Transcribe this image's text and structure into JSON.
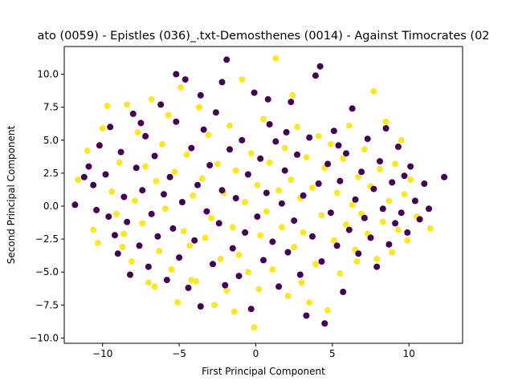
{
  "chart_data": {
    "type": "scatter",
    "title": "ato (0059) - Epistles (036)_.txt-Demosthenes (0014) - Against Timocrates (02",
    "xlabel": "First Principal Component",
    "ylabel": "Second Principal Component",
    "xlim": [
      -12.5,
      13.5
    ],
    "ylim": [
      -10.4,
      12.1
    ],
    "xticks": [
      -10,
      -5,
      0,
      5,
      10
    ],
    "yticks": [
      -10.0,
      -7.5,
      -5.0,
      -2.5,
      0.0,
      2.5,
      5.0,
      7.5,
      10.0
    ],
    "xtick_labels": [
      "−10",
      "−5",
      "0",
      "5",
      "10"
    ],
    "ytick_labels": [
      "−10.0",
      "−7.5",
      "−5.0",
      "−2.5",
      "0.0",
      "2.5",
      "5.0",
      "7.5",
      "10.0"
    ],
    "grid": false,
    "colors": {
      "class_0": "#440154",
      "class_1": "#fde725"
    },
    "series": [
      {
        "color": "#440154",
        "points": [
          [
            -11.8,
            0.1
          ],
          [
            -11.2,
            2.2
          ],
          [
            -10.9,
            3.0
          ],
          [
            -10.6,
            1.6
          ],
          [
            -10.4,
            -0.3
          ],
          [
            -10.2,
            4.6
          ],
          [
            -9.8,
            2.4
          ],
          [
            -9.6,
            -0.8
          ],
          [
            -9.5,
            6.0
          ],
          [
            -9.2,
            -2.2
          ],
          [
            -9.0,
            -3.6
          ],
          [
            -8.8,
            4.1
          ],
          [
            -8.6,
            0.7
          ],
          [
            -8.4,
            -1.2
          ],
          [
            -8.2,
            -5.2
          ],
          [
            -8.0,
            7.0
          ],
          [
            -7.8,
            2.9
          ],
          [
            -7.6,
            -3.0
          ],
          [
            -7.4,
            1.2
          ],
          [
            -7.2,
            5.3
          ],
          [
            -7.0,
            -4.6
          ],
          [
            -6.8,
            -0.6
          ],
          [
            -6.6,
            3.8
          ],
          [
            -6.4,
            -2.3
          ],
          [
            -6.2,
            7.7
          ],
          [
            -6.0,
            0.9
          ],
          [
            -5.8,
            -5.6
          ],
          [
            -5.6,
            2.2
          ],
          [
            -5.4,
            -1.7
          ],
          [
            -5.2,
            6.4
          ],
          [
            -5.0,
            -3.9
          ],
          [
            -4.8,
            0.3
          ],
          [
            -4.6,
            9.6
          ],
          [
            -4.4,
            -6.2
          ],
          [
            -4.2,
            4.4
          ],
          [
            -4.0,
            -2.6
          ],
          [
            -3.8,
            1.6
          ],
          [
            -3.6,
            -7.6
          ],
          [
            -3.4,
            5.8
          ],
          [
            -3.2,
            -0.4
          ],
          [
            -3.0,
            3.1
          ],
          [
            -2.8,
            -4.4
          ],
          [
            -2.6,
            7.1
          ],
          [
            -2.4,
            -1.3
          ],
          [
            -2.2,
            1.2
          ],
          [
            -2.0,
            -6.0
          ],
          [
            -1.9,
            11.1
          ],
          [
            -1.7,
            4.3
          ],
          [
            -1.5,
            -3.2
          ],
          [
            -1.3,
            0.6
          ],
          [
            -1.1,
            -5.3
          ],
          [
            -0.9,
            5.0
          ],
          [
            -0.7,
            -2.0
          ],
          [
            -0.5,
            2.4
          ],
          [
            -0.3,
            -7.8
          ],
          [
            -0.1,
            8.6
          ],
          [
            0.1,
            -0.8
          ],
          [
            0.3,
            3.6
          ],
          [
            0.5,
            -4.1
          ],
          [
            0.7,
            1.0
          ],
          [
            0.9,
            6.2
          ],
          [
            1.1,
            -2.7
          ],
          [
            1.3,
            4.9
          ],
          [
            1.5,
            -6.1
          ],
          [
            1.7,
            0.2
          ],
          [
            1.9,
            2.7
          ],
          [
            2.1,
            -3.5
          ],
          [
            2.3,
            7.9
          ],
          [
            2.5,
            -1.1
          ],
          [
            2.7,
            3.9
          ],
          [
            2.9,
            -5.2
          ],
          [
            3.1,
            0.8
          ],
          [
            3.3,
            -8.3
          ],
          [
            3.5,
            5.2
          ],
          [
            3.7,
            -2.3
          ],
          [
            3.9,
            9.9
          ],
          [
            4.1,
            1.7
          ],
          [
            4.3,
            -4.2
          ],
          [
            4.5,
            -8.9
          ],
          [
            4.7,
            3.2
          ],
          [
            4.9,
            -0.5
          ],
          [
            5.1,
            5.7
          ],
          [
            5.3,
            -3.0
          ],
          [
            5.5,
            1.9
          ],
          [
            5.7,
            -6.5
          ],
          [
            5.9,
            4.0
          ],
          [
            6.1,
            -1.8
          ],
          [
            6.3,
            7.4
          ],
          [
            6.5,
            0.5
          ],
          [
            6.7,
            -3.6
          ],
          [
            6.9,
            2.6
          ],
          [
            7.1,
            -0.9
          ],
          [
            7.3,
            5.1
          ],
          [
            7.5,
            -2.4
          ],
          [
            7.7,
            1.3
          ],
          [
            7.9,
            -4.6
          ],
          [
            8.1,
            3.4
          ],
          [
            8.3,
            -0.2
          ],
          [
            8.5,
            5.9
          ],
          [
            8.7,
            -2.9
          ],
          [
            8.9,
            1.8
          ],
          [
            9.1,
            -1.3
          ],
          [
            9.3,
            4.5
          ],
          [
            9.5,
            -0.5
          ],
          [
            9.7,
            2.3
          ],
          [
            9.9,
            -2.0
          ],
          [
            10.1,
            3.0
          ],
          [
            10.4,
            0.4
          ],
          [
            10.7,
            -1.0
          ],
          [
            11.0,
            1.7
          ],
          [
            11.3,
            -0.2
          ],
          [
            12.3,
            2.2
          ],
          [
            4.2,
            10.6
          ],
          [
            -5.2,
            10.0
          ],
          [
            -2.2,
            9.4
          ],
          [
            0.8,
            8.1
          ],
          [
            -7.5,
            6.3
          ],
          [
            -3.6,
            8.4
          ],
          [
            2.0,
            5.6
          ],
          [
            5.4,
            4.6
          ]
        ]
      },
      {
        "color": "#fde725",
        "points": [
          [
            -11.6,
            2.0
          ],
          [
            -11.0,
            4.2
          ],
          [
            -10.6,
            -1.8
          ],
          [
            -10.3,
            -2.8
          ],
          [
            -10.0,
            5.9
          ],
          [
            -9.7,
            7.6
          ],
          [
            -9.4,
            1.1
          ],
          [
            -9.1,
            -0.6
          ],
          [
            -8.9,
            3.3
          ],
          [
            -8.6,
            -2.1
          ],
          [
            -8.4,
            7.7
          ],
          [
            -8.1,
            -4.2
          ],
          [
            -7.9,
            0.4
          ],
          [
            -7.7,
            5.6
          ],
          [
            -7.4,
            -1.3
          ],
          [
            -7.2,
            3.0
          ],
          [
            -7.0,
            -5.8
          ],
          [
            -6.8,
            8.1
          ],
          [
            -6.5,
            1.9
          ],
          [
            -6.3,
            -3.4
          ],
          [
            -6.1,
            4.7
          ],
          [
            -5.9,
            -0.2
          ],
          [
            -5.7,
            6.9
          ],
          [
            -5.5,
            -4.8
          ],
          [
            -5.3,
            2.6
          ],
          [
            -5.1,
            -7.3
          ],
          [
            -4.9,
            9.0
          ],
          [
            -4.7,
            -1.9
          ],
          [
            -4.5,
            3.9
          ],
          [
            -4.3,
            -3.0
          ],
          [
            -4.1,
            0.8
          ],
          [
            -3.9,
            -5.7
          ],
          [
            -3.7,
            7.5
          ],
          [
            -3.5,
            2.1
          ],
          [
            -3.3,
            -2.4
          ],
          [
            -3.1,
            5.4
          ],
          [
            -2.9,
            -0.9
          ],
          [
            -2.7,
            -7.5
          ],
          [
            -2.5,
            3.2
          ],
          [
            -2.3,
            -4.0
          ],
          [
            -2.1,
            1.0
          ],
          [
            -1.9,
            -6.4
          ],
          [
            -1.7,
            6.1
          ],
          [
            -1.5,
            -1.6
          ],
          [
            -1.3,
            2.7
          ],
          [
            -1.1,
            -3.7
          ],
          [
            -0.9,
            9.6
          ],
          [
            -0.7,
            0.3
          ],
          [
            -0.5,
            -5.0
          ],
          [
            -0.3,
            4.0
          ],
          [
            -0.1,
            -9.2
          ],
          [
            0.1,
            1.6
          ],
          [
            0.3,
            -2.2
          ],
          [
            0.5,
            6.6
          ],
          [
            0.7,
            -0.4
          ],
          [
            0.9,
            3.3
          ],
          [
            1.1,
            -4.8
          ],
          [
            1.3,
            11.2
          ],
          [
            1.5,
            1.2
          ],
          [
            1.7,
            -1.6
          ],
          [
            1.9,
            4.4
          ],
          [
            2.1,
            -6.8
          ],
          [
            2.3,
            2.0
          ],
          [
            2.5,
            -3.1
          ],
          [
            2.7,
            6.0
          ],
          [
            2.9,
            0.6
          ],
          [
            3.1,
            -2.0
          ],
          [
            3.3,
            3.7
          ],
          [
            3.5,
            -7.3
          ],
          [
            3.7,
            1.4
          ],
          [
            3.9,
            -4.4
          ],
          [
            4.1,
            5.3
          ],
          [
            4.3,
            -0.7
          ],
          [
            4.5,
            2.9
          ],
          [
            4.7,
            -7.9
          ],
          [
            4.9,
            4.7
          ],
          [
            5.1,
            -2.6
          ],
          [
            5.3,
            1.0
          ],
          [
            5.5,
            -5.1
          ],
          [
            5.7,
            3.6
          ],
          [
            5.9,
            -1.4
          ],
          [
            6.1,
            6.1
          ],
          [
            6.3,
            0.1
          ],
          [
            6.5,
            -3.3
          ],
          [
            6.7,
            2.2
          ],
          [
            6.9,
            -0.6
          ],
          [
            7.1,
            4.3
          ],
          [
            7.3,
            -2.1
          ],
          [
            7.5,
            1.5
          ],
          [
            7.7,
            8.7
          ],
          [
            7.9,
            -4.0
          ],
          [
            8.1,
            2.8
          ],
          [
            8.3,
            -1.2
          ],
          [
            8.5,
            6.4
          ],
          [
            8.7,
            0.4
          ],
          [
            8.9,
            -3.5
          ],
          [
            9.1,
            3.2
          ],
          [
            9.3,
            -1.8
          ],
          [
            9.5,
            5.0
          ],
          [
            9.7,
            0.9
          ],
          [
            9.9,
            -2.6
          ],
          [
            10.1,
            2.0
          ],
          [
            10.5,
            -0.8
          ],
          [
            11.4,
            -1.7
          ],
          [
            -8.7,
            -3.1
          ],
          [
            -4.2,
            -5.6
          ],
          [
            0.2,
            -6.3
          ],
          [
            3.0,
            -5.8
          ],
          [
            6.6,
            -4.2
          ],
          [
            -6.6,
            -6.1
          ],
          [
            -1.4,
            -8.0
          ],
          [
            2.4,
            8.4
          ]
        ]
      }
    ]
  }
}
